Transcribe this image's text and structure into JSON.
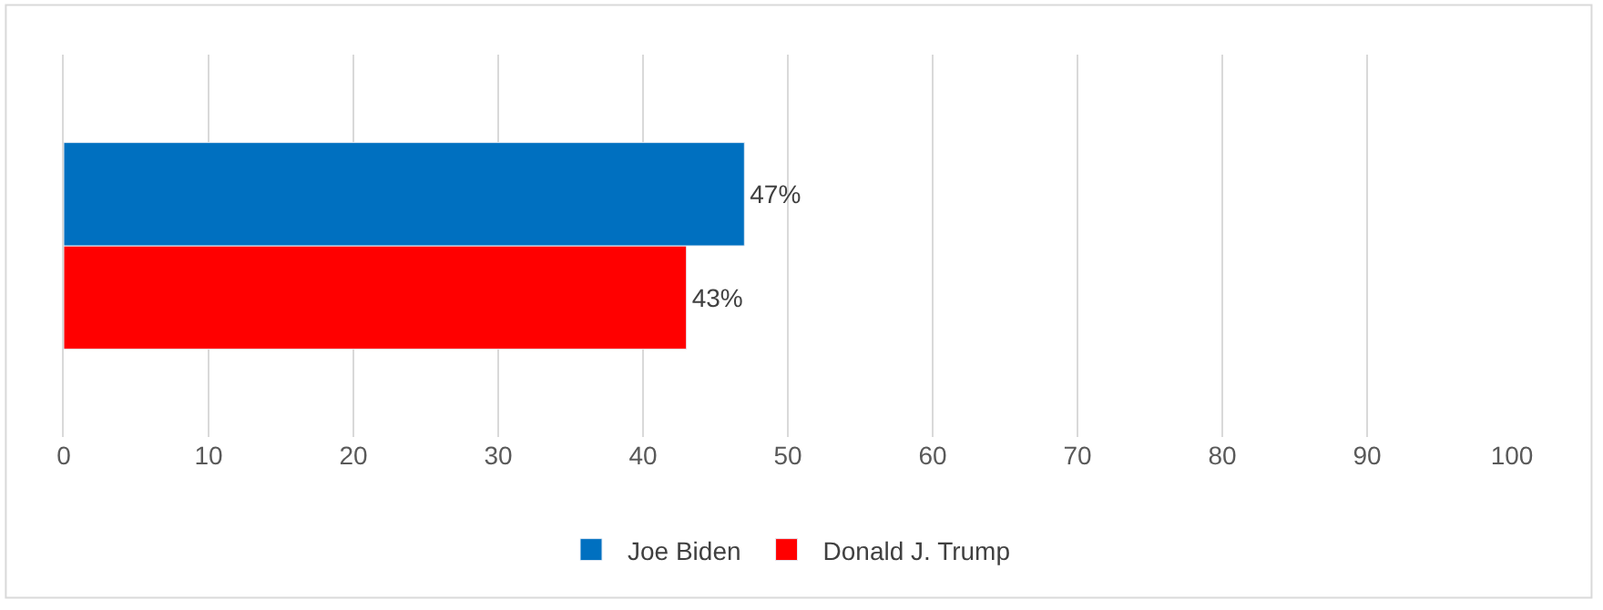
{
  "chart_data": {
    "type": "bar",
    "orientation": "horizontal",
    "categories": [
      null
    ],
    "series": [
      {
        "name": "Joe Biden",
        "color": "#0070c0",
        "values": [
          47
        ],
        "value_labels": [
          "47%"
        ]
      },
      {
        "name": "Donald J. Trump",
        "color": "#ff0000",
        "values": [
          43
        ],
        "value_labels": [
          "43%"
        ]
      }
    ],
    "xlim": [
      0,
      100
    ],
    "xticks": [
      0,
      10,
      20,
      30,
      40,
      50,
      60,
      70,
      80,
      90,
      100
    ],
    "grid": "x",
    "legend": "bottom",
    "tick_labels": "x"
  }
}
